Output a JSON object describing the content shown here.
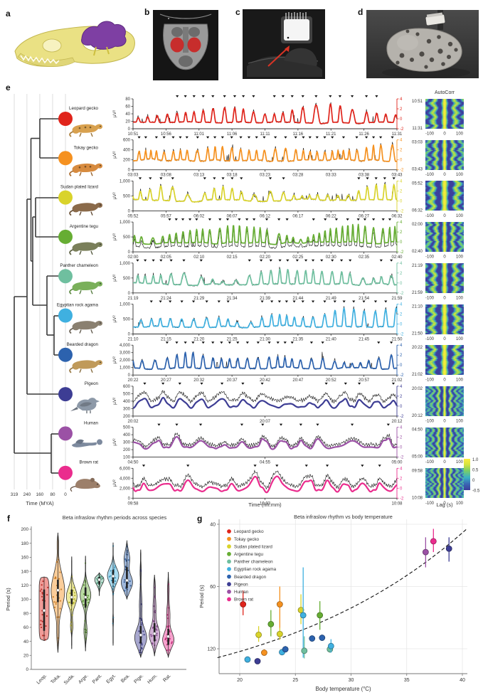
{
  "panel_labels": {
    "a": "a",
    "b": "b",
    "c": "c",
    "d": "d",
    "e": "e",
    "f": "f",
    "g": "g"
  },
  "species": [
    {
      "name": "Leopard gecko",
      "color": "#e0241b"
    },
    {
      "name": "Tokay gecko",
      "color": "#f59120"
    },
    {
      "name": "Sudan plated lizard",
      "color": "#d9d32b"
    },
    {
      "name": "Argentine tegu",
      "color": "#66ad33"
    },
    {
      "name": "Panther chameleon",
      "color": "#6fbf9f"
    },
    {
      "name": "Egyptian rock agama",
      "color": "#3fb0e0"
    },
    {
      "name": "Bearded dragon",
      "color": "#2c62ae"
    },
    {
      "name": "Pigeon",
      "color": "#3d3d94"
    },
    {
      "name": "Human",
      "color": "#9b51a5"
    },
    {
      "name": "Brown rat",
      "color": "#ea2c8d"
    }
  ],
  "chart_data": [
    {
      "id": "e",
      "type": "line",
      "ylabel": "µV²",
      "xlabel": "Time (hh:mm)",
      "tree": {
        "axis_label": "Time (MYA)",
        "ticks": [
          "319",
          "240",
          "160",
          "80",
          "0"
        ]
      },
      "autocorr": {
        "title": "AutoCorr",
        "xlabel": "Lag (s)",
        "xticks": [
          "-100",
          "0",
          "100"
        ],
        "colorbar_ticks": [
          "1.0",
          "0.5",
          "0",
          "-0.5"
        ]
      },
      "right_ticks": [
        "4",
        "2",
        "0",
        "-2"
      ],
      "rows": [
        {
          "species": 0,
          "ytick_labels": [
            "80",
            "60",
            "40",
            "20",
            "0"
          ],
          "xtick_labels": [
            "10:51",
            "10:56",
            "11:01",
            "11:06",
            "11:11",
            "11:16",
            "11:21",
            "11:26",
            "11:31"
          ],
          "period_s": 84,
          "window_s": 2400,
          "seed": 11,
          "style": "spiky",
          "black_offset": 0,
          "baseline": 0.22,
          "amp": 0.55
        },
        {
          "species": 1,
          "ytick_labels": [
            "600",
            "400",
            "200",
            "0"
          ],
          "xtick_labels": [
            "03:03",
            "03:08",
            "03:13",
            "03:18",
            "03:23",
            "03:28",
            "03:33",
            "03:38",
            "03:43"
          ],
          "period_s": 70,
          "window_s": 2400,
          "seed": 23,
          "style": "spiky",
          "black_offset": 0,
          "baseline": 0.32,
          "amp": 0.45
        },
        {
          "species": 2,
          "ytick_labels": [
            "1,000",
            "500",
            "0"
          ],
          "xtick_labels": [
            "05:52",
            "05:57",
            "06:02",
            "06:07",
            "06:12",
            "06:17",
            "06:22",
            "06:27",
            "06:32"
          ],
          "period_s": 100,
          "window_s": 2400,
          "seed": 37,
          "style": "spiky",
          "black_offset": 0,
          "baseline": 0.35,
          "amp": 0.42
        },
        {
          "species": 3,
          "ytick_labels": [
            "1,000",
            "500",
            "0"
          ],
          "xtick_labels": [
            "02:00",
            "02:05",
            "02:10",
            "02:15",
            "02:20",
            "02:25",
            "02:30",
            "02:35",
            "02:40"
          ],
          "period_s": 66,
          "window_s": 2400,
          "seed": 41,
          "style": "spiky",
          "black_offset": -0.12,
          "baseline": 0.3,
          "amp": 0.48
        },
        {
          "species": 4,
          "ytick_labels": [
            "1,000",
            "500",
            "0"
          ],
          "xtick_labels": [
            "21:19",
            "21:24",
            "21:29",
            "21:34",
            "21:39",
            "21:44",
            "21:49",
            "21:54",
            "21:59"
          ],
          "period_s": 86,
          "window_s": 2400,
          "seed": 53,
          "style": "spiky",
          "black_offset": 0,
          "baseline": 0.3,
          "amp": 0.42
        },
        {
          "species": 5,
          "ytick_labels": [
            "1,000",
            "500",
            "0"
          ],
          "xtick_labels": [
            "21:10",
            "21:15",
            "21:20",
            "21:25",
            "21:30",
            "21:35",
            "21:40",
            "21:45",
            "21:50"
          ],
          "period_s": 96,
          "window_s": 2400,
          "seed": 67,
          "style": "spiky",
          "black_offset": 0,
          "baseline": 0.24,
          "amp": 0.5
        },
        {
          "species": 6,
          "ytick_labels": [
            "4,000",
            "3,000",
            "2,000",
            "1,000",
            "0"
          ],
          "xtick_labels": [
            "20:22",
            "20:27",
            "20:32",
            "20:37",
            "20:42",
            "20:47",
            "20:52",
            "20:57",
            "21:02"
          ],
          "period_s": 94,
          "window_s": 2400,
          "seed": 71,
          "style": "spiky",
          "black_offset": 0,
          "baseline": 0.22,
          "amp": 0.58
        },
        {
          "species": 7,
          "ytick_labels": [
            "600",
            "500",
            "400",
            "300",
            "200"
          ],
          "xtick_labels": [
            "20:02",
            "20:07",
            "20:12"
          ],
          "period_s": 48,
          "window_s": 600,
          "seed": 83,
          "style": "smooth",
          "black_offset": 0.22,
          "baseline": 0.3,
          "amp": 0.38
        },
        {
          "species": 8,
          "ytick_labels": [
            "500",
            "400",
            "300",
            "200",
            "100"
          ],
          "xtick_labels": [
            "04:50",
            "04:55",
            "05:00"
          ],
          "period_s": 50,
          "window_s": 600,
          "seed": 97,
          "style": "smooth",
          "black_offset": 0.09,
          "baseline": 0.3,
          "amp": 0.4
        },
        {
          "species": 9,
          "ytick_labels": [
            "6,000",
            "4,000",
            "2,000",
            "0"
          ],
          "xtick_labels": [
            "09:58",
            "10:03",
            "10:08"
          ],
          "period_s": 46,
          "window_s": 600,
          "seed": 113,
          "style": "smooth",
          "black_offset": 0.16,
          "baseline": 0.24,
          "amp": 0.5
        }
      ]
    },
    {
      "id": "f",
      "type": "violin",
      "title": "Beta infraslow rhythm periods across species",
      "ylabel": "Period (s)",
      "ylim": [
        0,
        200
      ],
      "yticks": [
        0,
        20,
        40,
        60,
        80,
        100,
        120,
        140,
        160,
        180,
        200
      ],
      "categories": [
        "Leop.",
        "Toka.",
        "Suda.",
        "Arge.",
        "Pant.",
        "Egyt.",
        "Bea.",
        "Pige.",
        "Hum.",
        "Rat."
      ],
      "violins": [
        {
          "species": 0,
          "min": 41,
          "max": 132,
          "median": 84,
          "q1": 55,
          "q3": 114,
          "shape": "uniform",
          "hw": 7,
          "modes": []
        },
        {
          "species": 1,
          "min": 24,
          "max": 195,
          "median": 113,
          "q1": 96,
          "q3": 128,
          "shape": "kde",
          "hw": 9.5,
          "modes": [
            [
              112,
              24,
              1
            ],
            [
              48,
              12,
              0.15
            ],
            [
              180,
              9,
              0.1
            ]
          ]
        },
        {
          "species": 2,
          "min": 29,
          "max": 161,
          "median": 103,
          "q1": 93,
          "q3": 114,
          "shape": "kde",
          "hw": 7.5,
          "modes": [
            [
              104,
              13,
              1
            ],
            [
              62,
              8,
              0.22
            ]
          ]
        },
        {
          "species": 3,
          "min": 26,
          "max": 162,
          "median": 103,
          "q1": 88,
          "q3": 117,
          "shape": "kde",
          "hw": 7.5,
          "modes": [
            [
              106,
              13,
              1
            ],
            [
              55,
              11,
              0.3
            ]
          ]
        },
        {
          "species": 4,
          "min": 105,
          "max": 138,
          "median": 128,
          "q1": 121,
          "q3": 132,
          "shape": "kde",
          "hw": 6.5,
          "modes": [
            [
              128,
              7,
              1
            ]
          ]
        },
        {
          "species": 5,
          "min": 34,
          "max": 181,
          "median": 133,
          "q1": 123,
          "q3": 142,
          "shape": "kde",
          "hw": 8,
          "modes": [
            [
              134,
              11,
              1
            ],
            [
              70,
              7,
              0.08
            ]
          ]
        },
        {
          "species": 6,
          "min": 100,
          "max": 184,
          "median": 127,
          "q1": 116,
          "q3": 146,
          "shape": "kde",
          "hw": 8,
          "modes": [
            [
              124,
              11,
              1
            ],
            [
              158,
              11,
              0.5
            ]
          ]
        },
        {
          "species": 7,
          "min": 17,
          "max": 171,
          "median": 49,
          "q1": 37,
          "q3": 62,
          "shape": "kde",
          "hw": 8.5,
          "modes": [
            [
              45,
              13,
              1
            ],
            [
              92,
              18,
              0.22
            ],
            [
              140,
              10,
              0.1
            ]
          ]
        },
        {
          "species": 8,
          "min": 19,
          "max": 135,
          "median": 51,
          "q1": 40,
          "q3": 66,
          "shape": "kde",
          "hw": 7.5,
          "modes": [
            [
              49,
              12,
              1
            ],
            [
              88,
              16,
              0.28
            ],
            [
              120,
              8,
              0.12
            ]
          ]
        },
        {
          "species": 9,
          "min": 17,
          "max": 139,
          "median": 47,
          "q1": 35,
          "q3": 58,
          "shape": "kde",
          "hw": 8,
          "modes": [
            [
              42,
              11,
              1
            ],
            [
              78,
              14,
              0.3
            ],
            [
              115,
              10,
              0.14
            ]
          ]
        }
      ]
    },
    {
      "id": "g",
      "type": "scatter",
      "title": "Beta infraslow rhythm vs body temperature",
      "xlabel": "Body temperature (°C)",
      "ylabel": "Period (s)",
      "xticks": [
        20,
        25,
        30,
        35,
        40
      ],
      "yticks": [
        40,
        60,
        120
      ],
      "points": [
        {
          "species": 0,
          "t": 20.3,
          "period": 70,
          "lo": 62,
          "hi": 78
        },
        {
          "species": 5,
          "t": 20.7,
          "period": 145,
          "lo": 140,
          "hi": 151
        },
        {
          "species": 7,
          "t": 21.6,
          "period": 150,
          "lo": 144,
          "hi": 156
        },
        {
          "species": 2,
          "t": 21.7,
          "period": 98,
          "lo": 88,
          "hi": 108
        },
        {
          "species": 1,
          "t": 22.2,
          "period": 128,
          "lo": 121,
          "hi": 135
        },
        {
          "species": 3,
          "t": 22.8,
          "period": 86,
          "lo": 74,
          "hi": 100
        },
        {
          "species": 2,
          "t": 23.6,
          "period": 97,
          "lo": 90,
          "hi": 105
        },
        {
          "species": 1,
          "t": 23.6,
          "period": 70,
          "lo": 60,
          "hi": 90
        },
        {
          "species": 5,
          "t": 23.8,
          "period": 127,
          "lo": 121,
          "hi": 133
        },
        {
          "species": 6,
          "t": 24.1,
          "period": 121,
          "lo": 115,
          "hi": 127
        },
        {
          "species": 2,
          "t": 25.5,
          "period": 74,
          "lo": 64,
          "hi": 86
        },
        {
          "species": 5,
          "t": 25.7,
          "period": 78,
          "lo": 52,
          "hi": 140
        },
        {
          "species": 4,
          "t": 25.8,
          "period": 124,
          "lo": 100,
          "hi": 142
        },
        {
          "species": 6,
          "t": 26.5,
          "period": 103,
          "lo": 99,
          "hi": 107
        },
        {
          "species": 3,
          "t": 27.2,
          "period": 78,
          "lo": 68,
          "hi": 92
        },
        {
          "species": 6,
          "t": 27.4,
          "period": 102,
          "lo": 98,
          "hi": 106
        },
        {
          "species": 4,
          "t": 28.1,
          "period": 121,
          "lo": 114,
          "hi": 128
        },
        {
          "species": 5,
          "t": 28.2,
          "period": 115,
          "lo": 104,
          "hi": 128
        },
        {
          "species": 8,
          "t": 36.7,
          "period": 47,
          "lo": 43,
          "hi": 52
        },
        {
          "species": 9,
          "t": 37.4,
          "period": 44,
          "lo": 41,
          "hi": 47
        },
        {
          "species": 7,
          "t": 38.8,
          "period": 46,
          "lo": 43,
          "hi": 50
        }
      ],
      "trend": {
        "t_start": 18,
        "t_end": 40.4,
        "p_start": 140,
        "p_end": 41
      }
    }
  ]
}
